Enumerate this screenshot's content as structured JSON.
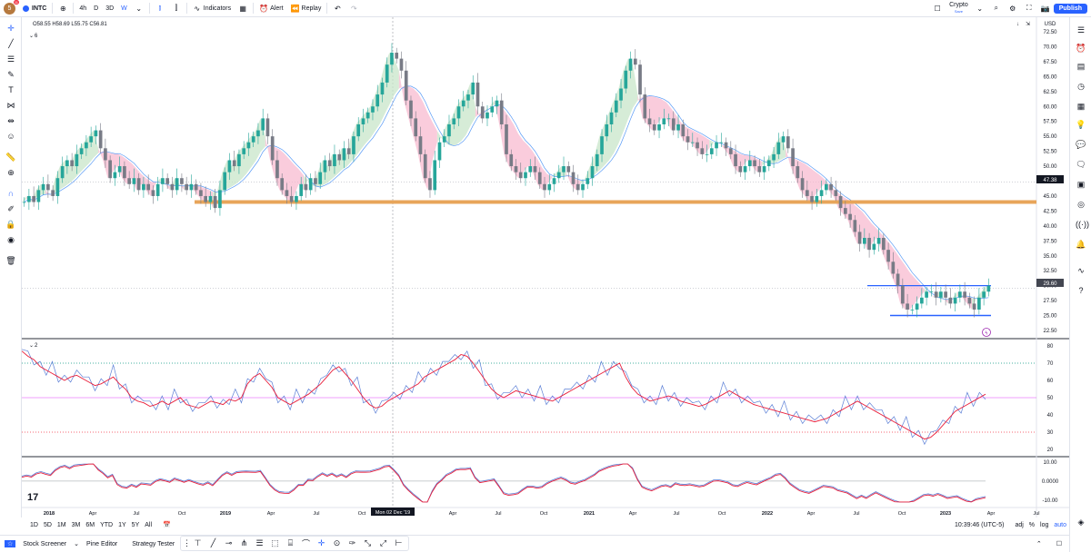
{
  "header": {
    "avatar_letter": "5",
    "avatar_badge": "11",
    "symbol": "INTC",
    "timeframes": [
      "4h",
      "D",
      "3D",
      "W"
    ],
    "active_timeframe": "W",
    "indicators_label": "Indicators",
    "alert_label": "Alert",
    "replay_label": "Replay",
    "crypto_label": "Crypto",
    "save_label": "Save",
    "publish_label": "Publish"
  },
  "legend": {
    "ohlc": "O58.55 H58.69 L55.75 C56.81",
    "pane1_count": "6",
    "pane2_count": "2"
  },
  "price_axis": {
    "currency": "USD",
    "ticks": [
      "72.50",
      "70.00",
      "67.50",
      "65.00",
      "62.50",
      "60.00",
      "57.50",
      "55.00",
      "52.50",
      "50.00",
      "47.50",
      "45.00",
      "42.50",
      "40.00",
      "37.50",
      "35.00",
      "32.50",
      "30.00",
      "27.50",
      "25.00",
      "22.50"
    ],
    "label_47": "47.38",
    "label_last": "29.60"
  },
  "rsi_axis": {
    "ticks": [
      "80",
      "70",
      "60",
      "50",
      "40",
      "30",
      "20"
    ]
  },
  "macd_axis": {
    "ticks": [
      "10.00",
      "0.0000",
      "-10.00"
    ]
  },
  "time_axis": {
    "labels": [
      "2018",
      "Apr",
      "Jul",
      "Oct",
      "2019",
      "Apr",
      "Jul",
      "Oct",
      "Apr",
      "Jul",
      "Oct",
      "2021",
      "Apr",
      "Jul",
      "Oct",
      "2022",
      "Apr",
      "Jul",
      "Oct",
      "2023",
      "Apr",
      "Jul"
    ],
    "crosshair_label": "Mon 02 Dec '19"
  },
  "bottom": {
    "ranges": [
      "1D",
      "5D",
      "1M",
      "3M",
      "6M",
      "YTD",
      "1Y",
      "5Y",
      "All"
    ],
    "time": "10:39:46 (UTC-5)",
    "adj": "adj",
    "pct": "%",
    "log": "log",
    "auto": "auto"
  },
  "footer": {
    "stock_screener": "Stock Screener",
    "pine_editor": "Pine Editor",
    "strategy_tester": "Strategy Tester"
  },
  "chart_data": {
    "type": "candlestick",
    "symbol": "INTC",
    "interval": "W",
    "y_range": [
      22.5,
      72.5
    ],
    "horizontal_lines": [
      {
        "value": 44.0,
        "color": "#e8a55a"
      },
      {
        "value": 30.0,
        "color": "#2962ff"
      },
      {
        "value": 25.0,
        "color": "#2962ff"
      }
    ],
    "close_series": [
      44,
      45,
      44,
      46,
      47,
      46,
      45,
      48,
      50,
      51,
      50,
      52,
      53,
      54,
      55,
      56,
      53,
      51,
      48,
      49,
      50,
      48,
      47,
      48,
      46,
      47,
      46,
      45,
      47,
      48,
      47,
      46,
      48,
      47,
      46,
      47,
      46,
      45,
      44,
      45,
      43,
      46,
      49,
      51,
      50,
      52,
      53,
      54,
      55,
      56,
      58,
      55,
      51,
      48,
      46,
      45,
      44,
      45,
      47,
      46,
      48,
      47,
      49,
      51,
      50,
      52,
      51,
      53,
      52,
      55,
      57,
      58,
      59,
      60,
      62,
      64,
      67,
      69,
      68,
      66,
      61,
      58,
      55,
      52,
      48,
      46,
      51,
      54,
      55,
      57,
      58,
      60,
      61,
      62,
      64,
      60,
      58,
      59,
      60,
      61,
      57,
      52,
      50,
      49,
      48,
      49,
      50,
      49,
      47,
      46,
      47,
      48,
      49,
      50,
      49,
      47,
      46,
      47,
      48,
      50,
      52,
      55,
      57,
      59,
      61,
      63,
      66,
      68,
      67,
      62,
      58,
      57,
      56,
      57,
      58,
      58,
      56,
      57,
      55,
      54,
      54,
      53,
      52,
      52,
      53,
      54,
      54,
      53,
      52,
      50,
      49,
      50,
      51,
      50,
      49,
      50,
      51,
      52,
      54,
      55,
      53,
      50,
      48,
      46,
      45,
      44,
      45,
      46,
      47,
      46,
      45,
      43,
      42,
      41,
      39,
      37,
      38,
      36,
      37,
      38,
      36,
      34,
      32,
      30,
      27,
      26,
      26,
      27,
      28,
      29,
      29,
      28,
      29,
      28,
      27,
      28,
      29,
      28,
      27,
      26,
      28,
      29,
      30
    ],
    "rsi_series": [
      77,
      74,
      72,
      68,
      66,
      64,
      62,
      60,
      62,
      63,
      61,
      59,
      57,
      58,
      60,
      62,
      58,
      55,
      50,
      48,
      47,
      45,
      46,
      48,
      46,
      48,
      50,
      46,
      45,
      44,
      46,
      48,
      47,
      46,
      49,
      48,
      50,
      58,
      62,
      64,
      60,
      56,
      50,
      48,
      46,
      48,
      50,
      52,
      55,
      58,
      62,
      66,
      68,
      64,
      60,
      55,
      50,
      46,
      44,
      45,
      48,
      50,
      52,
      54,
      56,
      58,
      62,
      64,
      66,
      68,
      70,
      72,
      75,
      74,
      70,
      65,
      60,
      55,
      52,
      50,
      52,
      54,
      53,
      52,
      51,
      50,
      49,
      48,
      50,
      52,
      54,
      56,
      58,
      60,
      62,
      64,
      66,
      68,
      70,
      62,
      56,
      52,
      50,
      48,
      49,
      50,
      51,
      50,
      48,
      47,
      46,
      45,
      46,
      48,
      50,
      52,
      54,
      52,
      50,
      48,
      46,
      45,
      44,
      43,
      42,
      41,
      40,
      39,
      38,
      37,
      36,
      37,
      38,
      40,
      42,
      44,
      46,
      48,
      46,
      44,
      42,
      40,
      38,
      36,
      34,
      32,
      30,
      28,
      26,
      27,
      30,
      34,
      38,
      42,
      44,
      46,
      48,
      50,
      52
    ],
    "rsi_ylim": [
      20,
      80
    ]
  }
}
